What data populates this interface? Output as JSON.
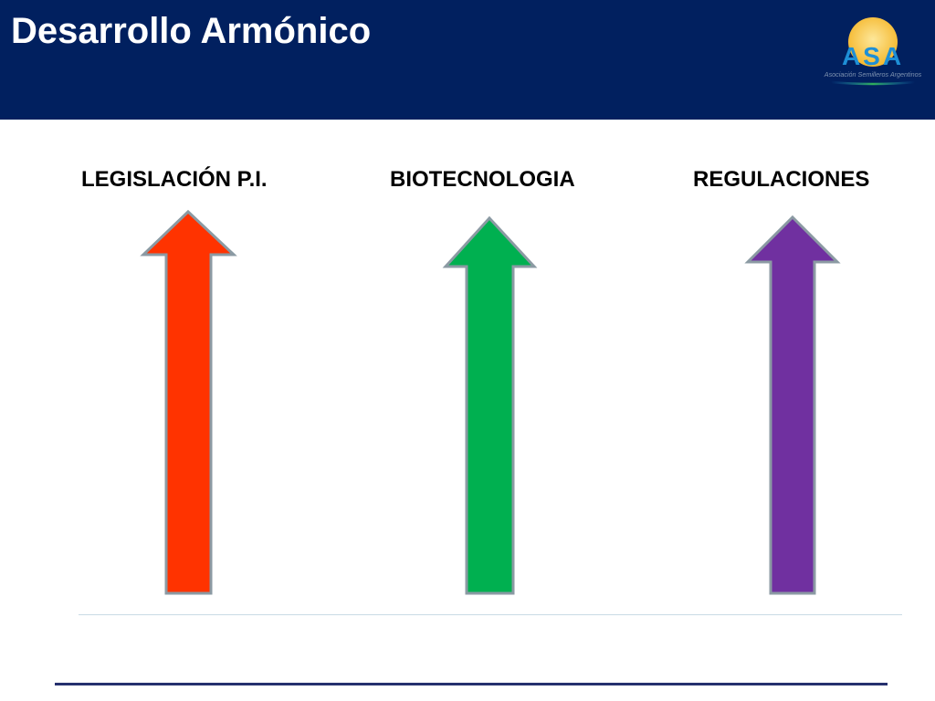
{
  "slide": {
    "title": "Desarrollo Armónico"
  },
  "logo": {
    "text": "ASA",
    "subtitle": "Asociación Semilleros Argentinos"
  },
  "columns": [
    {
      "label": "LEGISLACIÓN P.I.",
      "color": "#ff3300"
    },
    {
      "label": "BIOTECNOLOGIA",
      "color": "#00b050"
    },
    {
      "label": "REGULACIONES",
      "color": "#7030a0"
    }
  ],
  "colors": {
    "header_background": "#01205f",
    "arrow_outline": "#8b9aa3",
    "logo_sun": "#f7c744",
    "logo_letters": "#1e8fd6",
    "footer_line": "#26306e"
  }
}
